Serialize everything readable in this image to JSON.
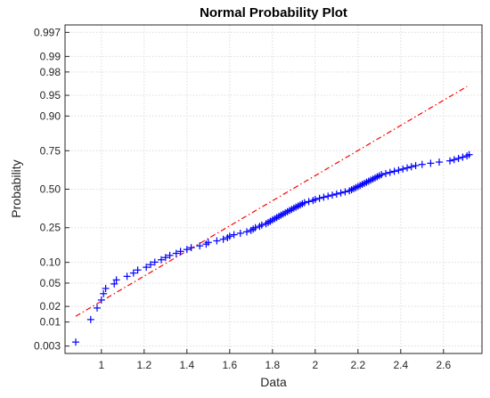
{
  "chart_data": {
    "type": "scatter",
    "title": "Normal Probability Plot",
    "xlabel": "Data",
    "ylabel": "Probability",
    "xlim": [
      0.83,
      2.78
    ],
    "ylim_prob": [
      0.002,
      0.998
    ],
    "x_ticks": [
      1,
      1.2,
      1.4,
      1.6,
      1.8,
      2,
      2.2,
      2.4,
      2.6
    ],
    "x_tick_labels": [
      "1",
      "1.2",
      "1.4",
      "1.6",
      "1.8",
      "2",
      "2.2",
      "2.4",
      "2.6"
    ],
    "y_ticks": [
      0.003,
      0.01,
      0.02,
      0.05,
      0.1,
      0.25,
      0.5,
      0.75,
      0.9,
      0.95,
      0.98,
      0.99,
      0.997
    ],
    "y_tick_labels": [
      "0.003",
      "0.01",
      "0.02",
      "0.05",
      "0.10",
      "0.25",
      "0.50",
      "0.75",
      "0.90",
      "0.95",
      "0.98",
      "0.99",
      "0.997"
    ],
    "grid": true,
    "marker_color": "#0000ff",
    "line_color": "#ff0000",
    "reference_line": {
      "x": [
        0.88,
        2.71
      ],
      "probability": [
        0.013,
        0.964
      ]
    },
    "series": [
      {
        "marker": "+",
        "x": [
          0.88,
          0.95,
          0.98,
          1.0,
          1.01,
          1.02,
          1.06,
          1.07,
          1.12,
          1.15,
          1.17,
          1.21,
          1.23,
          1.25,
          1.28,
          1.3,
          1.32,
          1.35,
          1.37,
          1.4,
          1.42,
          1.46,
          1.49,
          1.5,
          1.54,
          1.57,
          1.59,
          1.6,
          1.62,
          1.65,
          1.68,
          1.7,
          1.71,
          1.72,
          1.74,
          1.75,
          1.77,
          1.78,
          1.79,
          1.8,
          1.81,
          1.82,
          1.83,
          1.84,
          1.85,
          1.86,
          1.87,
          1.88,
          1.89,
          1.9,
          1.91,
          1.92,
          1.93,
          1.94,
          1.95,
          1.97,
          1.99,
          2.0,
          2.02,
          2.04,
          2.06,
          2.08,
          2.1,
          2.12,
          2.14,
          2.16,
          2.17,
          2.18,
          2.19,
          2.2,
          2.21,
          2.22,
          2.23,
          2.24,
          2.25,
          2.26,
          2.27,
          2.28,
          2.29,
          2.3,
          2.31,
          2.33,
          2.35,
          2.37,
          2.39,
          2.41,
          2.43,
          2.45,
          2.47,
          2.5,
          2.54,
          2.58,
          2.63,
          2.65,
          2.67,
          2.69,
          2.71,
          2.72
        ],
        "probability": [
          0.0037,
          0.0112,
          0.0187,
          0.0261,
          0.0336,
          0.041,
          0.0485,
          0.056,
          0.0634,
          0.0709,
          0.0784,
          0.0858,
          0.0933,
          0.1007,
          0.1082,
          0.1157,
          0.1231,
          0.1306,
          0.1381,
          0.1455,
          0.153,
          0.1604,
          0.1679,
          0.1754,
          0.1828,
          0.1903,
          0.1978,
          0.2052,
          0.2127,
          0.2201,
          0.2276,
          0.2351,
          0.2425,
          0.25,
          0.2575,
          0.2649,
          0.2724,
          0.2799,
          0.2873,
          0.2948,
          0.3022,
          0.3097,
          0.3172,
          0.3246,
          0.3321,
          0.3396,
          0.347,
          0.3545,
          0.3619,
          0.3694,
          0.3769,
          0.3843,
          0.3918,
          0.3993,
          0.4067,
          0.4142,
          0.4216,
          0.4291,
          0.4366,
          0.444,
          0.4515,
          0.459,
          0.4664,
          0.4739,
          0.4813,
          0.4888,
          0.4963,
          0.5037,
          0.5112,
          0.5187,
          0.5261,
          0.5336,
          0.541,
          0.5485,
          0.556,
          0.5634,
          0.5709,
          0.5784,
          0.5858,
          0.5933,
          0.6007,
          0.6082,
          0.6157,
          0.6231,
          0.6306,
          0.6381,
          0.6455,
          0.653,
          0.6604,
          0.6679,
          0.6754,
          0.6828,
          0.6903,
          0.6978,
          0.7052,
          0.7127,
          0.7201,
          0.7276
        ]
      }
    ]
  }
}
